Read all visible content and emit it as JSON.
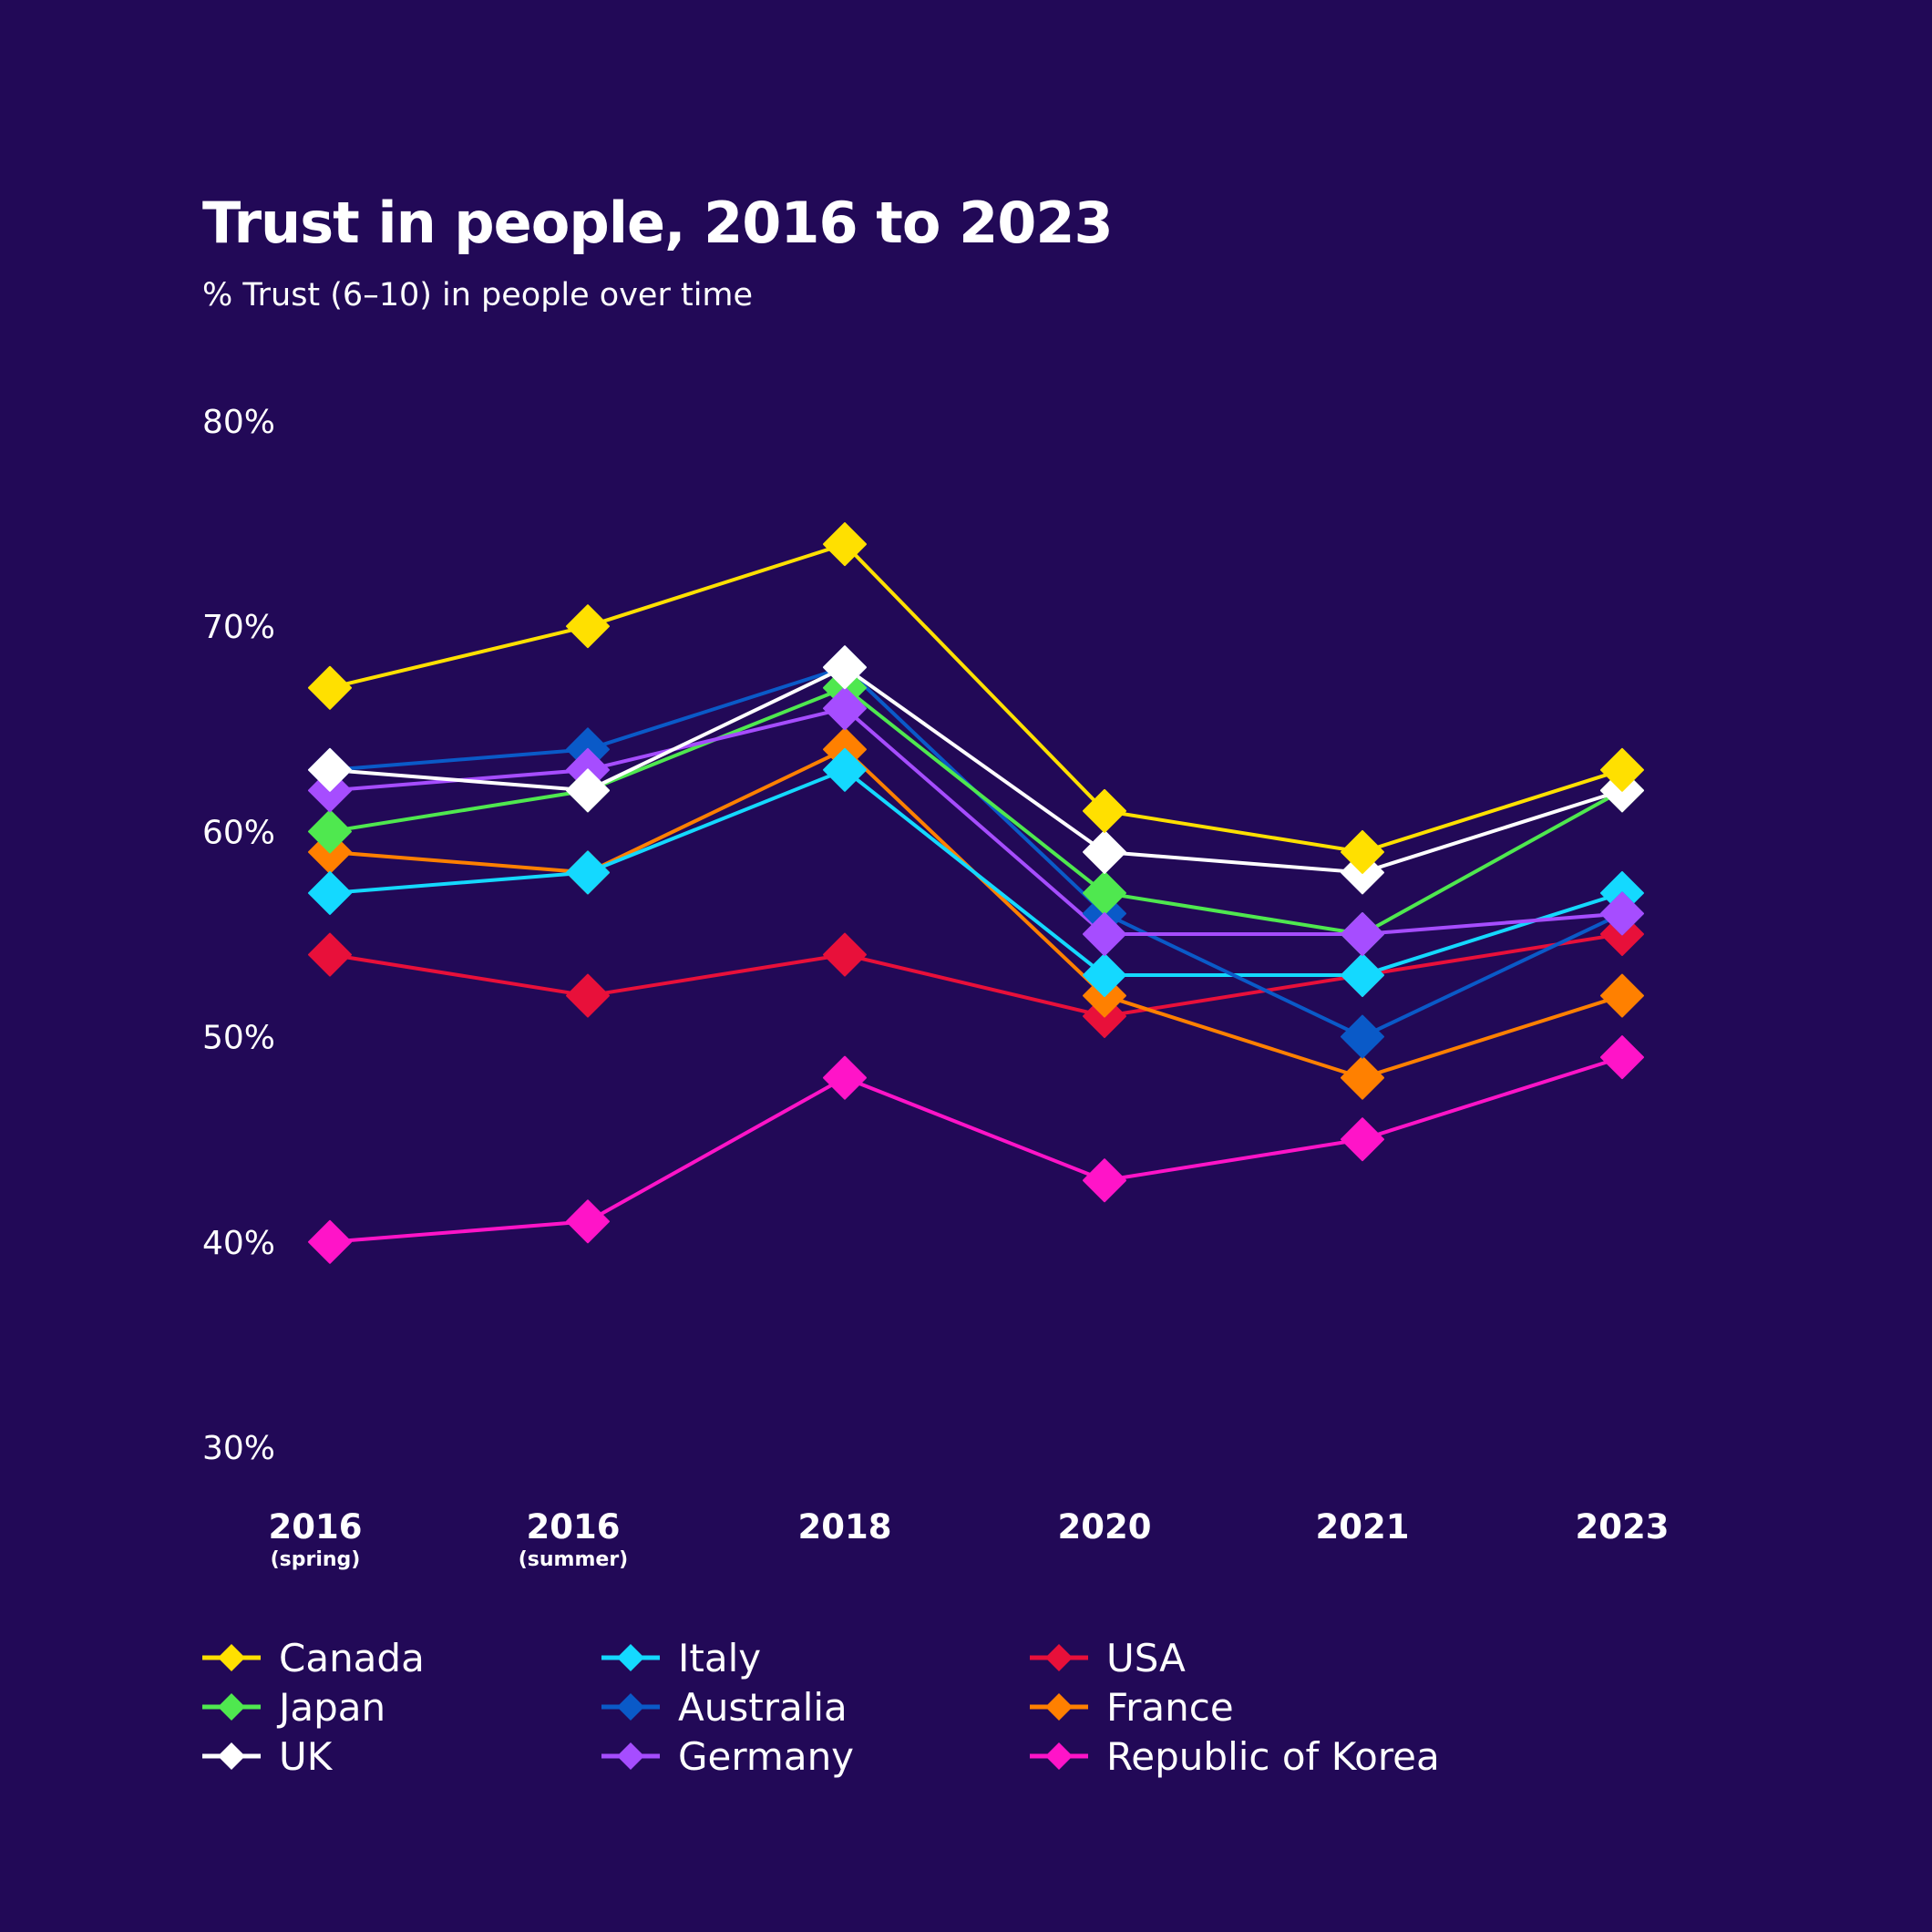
{
  "chart_data": {
    "type": "line",
    "title": "Trust in people, 2016 to 2023",
    "subtitle": "% Trust (6–10) in people over time",
    "categories": [
      {
        "label": "2016",
        "sub": "(spring)"
      },
      {
        "label": "2016",
        "sub": "(summer)"
      },
      {
        "label": "2018",
        "sub": ""
      },
      {
        "label": "2020",
        "sub": ""
      },
      {
        "label": "2021",
        "sub": ""
      },
      {
        "label": "2023",
        "sub": ""
      }
    ],
    "ylim": [
      30,
      80
    ],
    "yticks": [
      "30%",
      "40%",
      "50%",
      "60%",
      "70%",
      "80%"
    ],
    "ytick_values": [
      30,
      40,
      50,
      60,
      70,
      80
    ],
    "grid": false,
    "marker": "diamond",
    "legend_position": "bottom",
    "series": [
      {
        "name": "Republic of Korea",
        "color": "#ff14c8",
        "values": [
          40,
          41,
          48,
          43,
          45,
          49
        ]
      },
      {
        "name": "USA",
        "color": "#e8103a",
        "values": [
          54,
          52,
          54,
          51,
          53,
          55
        ]
      },
      {
        "name": "France",
        "color": "#ff8000",
        "values": [
          59,
          58,
          64,
          52,
          48,
          52
        ]
      },
      {
        "name": "Italy",
        "color": "#14d9ff",
        "values": [
          57,
          58,
          63,
          53,
          53,
          57
        ]
      },
      {
        "name": "Australia",
        "color": "#0a5ac8",
        "values": [
          63,
          64,
          68,
          56,
          50,
          56
        ]
      },
      {
        "name": "Japan",
        "color": "#4fe84f",
        "values": [
          60,
          62,
          67,
          57,
          55,
          62
        ]
      },
      {
        "name": "Germany",
        "color": "#a64dff",
        "values": [
          62,
          63,
          66,
          55,
          55,
          56
        ]
      },
      {
        "name": "UK",
        "color": "#ffffff",
        "values": [
          63,
          62,
          68,
          59,
          58,
          62
        ]
      },
      {
        "name": "Canada",
        "color": "#ffe000",
        "values": [
          67,
          70,
          74,
          61,
          59,
          63
        ]
      }
    ],
    "legend_order": [
      "Canada",
      "Japan",
      "UK",
      "Italy",
      "Australia",
      "Germany",
      "USA",
      "France",
      "Republic of Korea"
    ]
  }
}
